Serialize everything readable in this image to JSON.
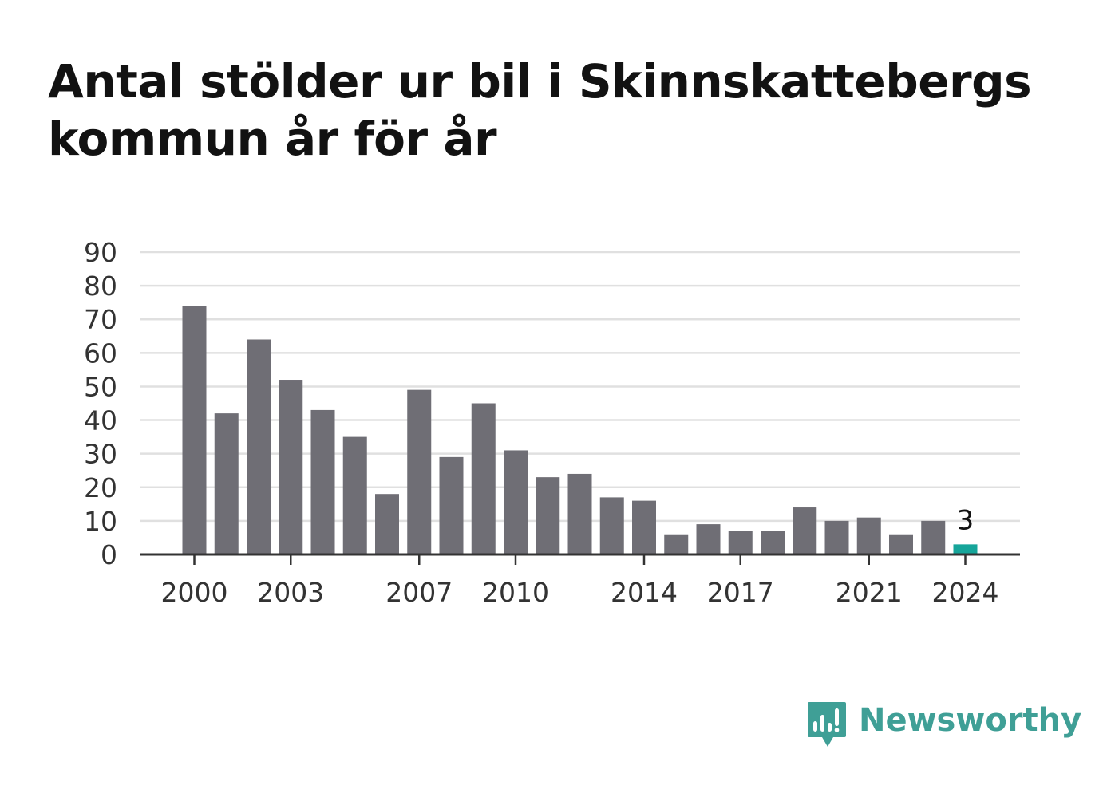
{
  "chart_data": {
    "type": "bar",
    "title": "Antal stölder ur bil i Skinnskattebergs kommun år för år",
    "categories": [
      2000,
      2001,
      2002,
      2003,
      2004,
      2005,
      2006,
      2007,
      2008,
      2009,
      2010,
      2011,
      2012,
      2013,
      2014,
      2015,
      2016,
      2017,
      2018,
      2019,
      2020,
      2021,
      2022,
      2023,
      2024
    ],
    "values": [
      74,
      42,
      64,
      52,
      43,
      35,
      18,
      49,
      29,
      45,
      31,
      23,
      24,
      17,
      16,
      6,
      9,
      7,
      7,
      14,
      10,
      11,
      6,
      10,
      3
    ],
    "x_tick_labels": [
      "2000",
      "2003",
      "2007",
      "2010",
      "2014",
      "2017",
      "2021",
      "2024"
    ],
    "y_ticks": [
      0,
      10,
      20,
      30,
      40,
      50,
      60,
      70,
      80,
      90
    ],
    "ylim": [
      0,
      90
    ],
    "xlabel": "",
    "ylabel": "",
    "grid": true,
    "highlight": {
      "category": 2024,
      "label": "3"
    },
    "colors": {
      "bar": "#6f6e75",
      "highlight": "#16a59a",
      "grid": "#e0e0e0",
      "axis": "#333333"
    }
  },
  "brand": {
    "name": "Newsworthy",
    "icon": "newsworthy-logo-icon",
    "color": "#3f9f96"
  }
}
